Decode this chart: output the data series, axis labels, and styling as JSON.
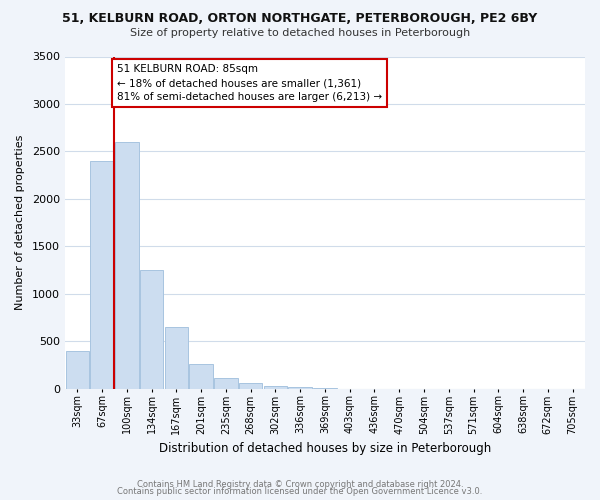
{
  "title1": "51, KELBURN ROAD, ORTON NORTHGATE, PETERBOROUGH, PE2 6BY",
  "title2": "Size of property relative to detached houses in Peterborough",
  "xlabel": "Distribution of detached houses by size in Peterborough",
  "ylabel": "Number of detached properties",
  "bar_labels": [
    "33sqm",
    "67sqm",
    "100sqm",
    "134sqm",
    "167sqm",
    "201sqm",
    "235sqm",
    "268sqm",
    "302sqm",
    "336sqm",
    "369sqm",
    "403sqm",
    "436sqm",
    "470sqm",
    "504sqm",
    "537sqm",
    "571sqm",
    "604sqm",
    "638sqm",
    "672sqm",
    "705sqm"
  ],
  "bar_values": [
    400,
    2400,
    2600,
    1250,
    650,
    260,
    110,
    60,
    30,
    15,
    5,
    0,
    0,
    0,
    0,
    0,
    0,
    0,
    0,
    0,
    0
  ],
  "bar_color": "#ccddf0",
  "bar_edge_color": "#a8c4e0",
  "vline_color": "#cc0000",
  "annotation_text": "51 KELBURN ROAD: 85sqm\n← 18% of detached houses are smaller (1,361)\n81% of semi-detached houses are larger (6,213) →",
  "annotation_box_color": "#ffffff",
  "annotation_box_edge": "#cc0000",
  "ylim": [
    0,
    3500
  ],
  "yticks": [
    0,
    500,
    1000,
    1500,
    2000,
    2500,
    3000,
    3500
  ],
  "footnote1": "Contains HM Land Registry data © Crown copyright and database right 2024.",
  "footnote2": "Contains public sector information licensed under the Open Government Licence v3.0.",
  "plot_bg_color": "#ffffff",
  "fig_bg_color": "#f0f4fa",
  "grid_color": "#d0dcea"
}
